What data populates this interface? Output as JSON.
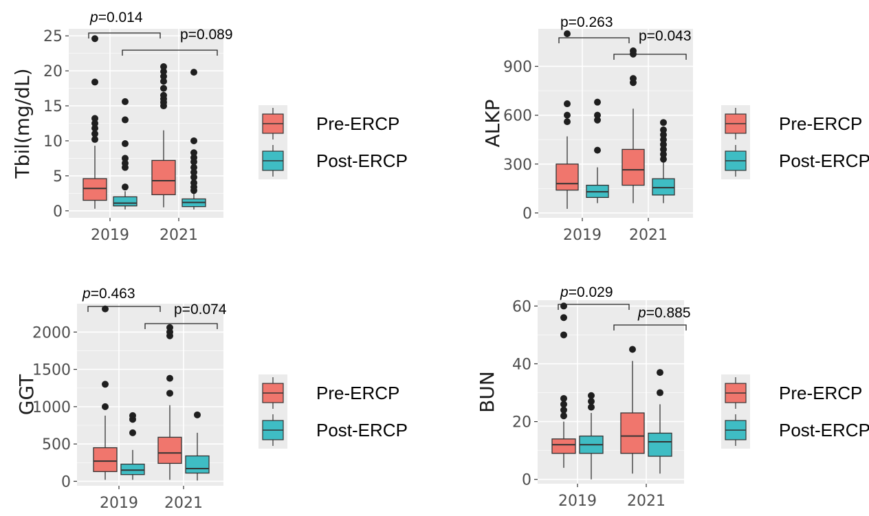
{
  "colors": {
    "pre_fill": "#F0766D",
    "post_fill": "#3FBDC4",
    "panel_bg": "#EBEBEB",
    "grid": "#FFFFFF",
    "line": "#333333",
    "point": "#1F1F1F"
  },
  "legend": {
    "pre_label": "Pre-ERCP",
    "post_label": "Post-ERCP"
  },
  "chart_data": [
    {
      "type": "box",
      "ylabel": "Tbil(mg/dL)",
      "categories": [
        "2019",
        "2021"
      ],
      "ylim": [
        -1,
        26
      ],
      "yticks": [
        0,
        5,
        10,
        15,
        20,
        25
      ],
      "ytick_labels": [
        "0",
        "5",
        "10",
        "15",
        "20",
        "25"
      ],
      "series": [
        {
          "name": "Pre-ERCP",
          "boxes": [
            {
              "min": 0.3,
              "q1": 1.5,
              "median": 3.2,
              "q3": 4.6,
              "max": 9.3,
              "outliers": [
                10.2,
                11,
                11.8,
                12.5,
                13.2,
                18.4,
                24.6
              ]
            },
            {
              "min": 0.5,
              "q1": 2.3,
              "median": 4.3,
              "q3": 7.2,
              "max": 11.5,
              "outliers": [
                15,
                15.5,
                16,
                16.5,
                17.5,
                18.5,
                19.2,
                19.9,
                20.6
              ]
            }
          ]
        },
        {
          "name": "Post-ERCP",
          "boxes": [
            {
              "min": 0.2,
              "q1": 0.7,
              "median": 1.1,
              "q3": 2.0,
              "max": 2.8,
              "outliers": [
                3.4,
                6.2,
                6.8,
                7.5,
                9.6,
                13,
                15.6
              ]
            },
            {
              "min": 0.2,
              "q1": 0.6,
              "median": 1.2,
              "q3": 1.7,
              "max": 2.5,
              "outliers": [
                2.9,
                3.4,
                4,
                4.8,
                5.5,
                6.2,
                7,
                7.6,
                8.3,
                10,
                19.8
              ]
            }
          ]
        }
      ],
      "brackets": [
        {
          "label_prefix": "p",
          "label_value": "=0.014",
          "from": "2019 Pre-ERCP",
          "to": "2021 Pre-ERCP"
        },
        {
          "label_prefix": "",
          "label_value": "p=0.089",
          "from": "2019 Post-ERCP",
          "to": "2021 Post-ERCP"
        }
      ]
    },
    {
      "type": "box",
      "ylabel": "ALKP",
      "categories": [
        "2019",
        "2021"
      ],
      "ylim": [
        -30,
        1130
      ],
      "yticks": [
        0,
        300,
        600,
        900
      ],
      "ytick_labels": [
        "0",
        "300",
        "600",
        "900"
      ],
      "series": [
        {
          "name": "Pre-ERCP",
          "boxes": [
            {
              "min": 25,
              "q1": 140,
              "median": 180,
              "q3": 300,
              "max": 470,
              "outliers": [
                560,
                600,
                670,
                1100
              ]
            },
            {
              "min": 60,
              "q1": 170,
              "median": 265,
              "q3": 390,
              "max": 640,
              "outliers": [
                800,
                825,
                975,
                995
              ]
            }
          ]
        },
        {
          "name": "Post-ERCP",
          "boxes": [
            {
              "min": 60,
              "q1": 95,
              "median": 130,
              "q3": 170,
              "max": 280,
              "outliers": [
                385,
                570,
                600,
                680
              ]
            },
            {
              "min": 60,
              "q1": 110,
              "median": 155,
              "q3": 210,
              "max": 310,
              "outliers": [
                330,
                360,
                390,
                420,
                450,
                480,
                510,
                555
              ]
            }
          ]
        }
      ],
      "brackets": [
        {
          "label_prefix": "",
          "label_value": "p=0.263",
          "from": "2019 Pre-ERCP",
          "to": "2021 Pre-ERCP"
        },
        {
          "label_prefix": "",
          "label_value": "p=0.043",
          "from": "2019 Post-ERCP",
          "to": "2021 Post-ERCP"
        }
      ]
    },
    {
      "type": "box",
      "ylabel": "GGT",
      "categories": [
        "2019",
        "2021"
      ],
      "ylim": [
        -60,
        2380
      ],
      "yticks": [
        0,
        500,
        1000,
        1500,
        2000
      ],
      "ytick_labels": [
        "0",
        "500",
        "1000",
        "1500",
        "2000"
      ],
      "series": [
        {
          "name": "Pre-ERCP",
          "boxes": [
            {
              "min": 20,
              "q1": 130,
              "median": 270,
              "q3": 450,
              "max": 880,
              "outliers": [
                1000,
                1300,
                2310
              ]
            },
            {
              "min": 20,
              "q1": 240,
              "median": 380,
              "q3": 590,
              "max": 1020,
              "outliers": [
                1180,
                1380,
                1950,
                2000,
                2060
              ]
            }
          ]
        },
        {
          "name": "Post-ERCP",
          "boxes": [
            {
              "min": 20,
              "q1": 90,
              "median": 150,
              "q3": 230,
              "max": 420,
              "outliers": [
                650,
                830,
                880
              ]
            },
            {
              "min": 10,
              "q1": 110,
              "median": 170,
              "q3": 340,
              "max": 650,
              "outliers": [
                890
              ]
            }
          ]
        }
      ],
      "brackets": [
        {
          "label_prefix": "p",
          "label_value": "=0.463",
          "from": "2019 Pre-ERCP",
          "to": "2021 Pre-ERCP"
        },
        {
          "label_prefix": "",
          "label_value": "p=0.074",
          "from": "2019 Post-ERCP",
          "to": "2021 Post-ERCP"
        }
      ]
    },
    {
      "type": "box",
      "ylabel": "BUN",
      "categories": [
        "2019",
        "2021"
      ],
      "ylim": [
        -1.5,
        62
      ],
      "yticks": [
        0,
        20,
        40,
        60
      ],
      "ytick_labels": [
        "0",
        "20",
        "40",
        "60"
      ],
      "series": [
        {
          "name": "Pre-ERCP",
          "boxes": [
            {
              "min": 4,
              "q1": 9,
              "median": 12,
              "q3": 14,
              "max": 20,
              "outliers": [
                22,
                24,
                26,
                28,
                50,
                56,
                60
              ]
            },
            {
              "min": 2,
              "q1": 9,
              "median": 15,
              "q3": 23,
              "max": 41,
              "outliers": [
                45
              ]
            }
          ]
        },
        {
          "name": "Post-ERCP",
          "boxes": [
            {
              "min": 0,
              "q1": 9,
              "median": 12,
              "q3": 15,
              "max": 23,
              "outliers": [
                25,
                27,
                29
              ]
            },
            {
              "min": 2,
              "q1": 8,
              "median": 13,
              "q3": 16,
              "max": 26,
              "outliers": [
                30,
                37
              ]
            }
          ]
        }
      ],
      "brackets": [
        {
          "label_prefix": "p",
          "label_value": "=0.029",
          "from": "2019 Pre-ERCP",
          "to": "2021 Pre-ERCP"
        },
        {
          "label_prefix": "p",
          "label_value": "=0.885",
          "from": "2019 Post-ERCP",
          "to": "2021 Post-ERCP"
        }
      ]
    }
  ]
}
